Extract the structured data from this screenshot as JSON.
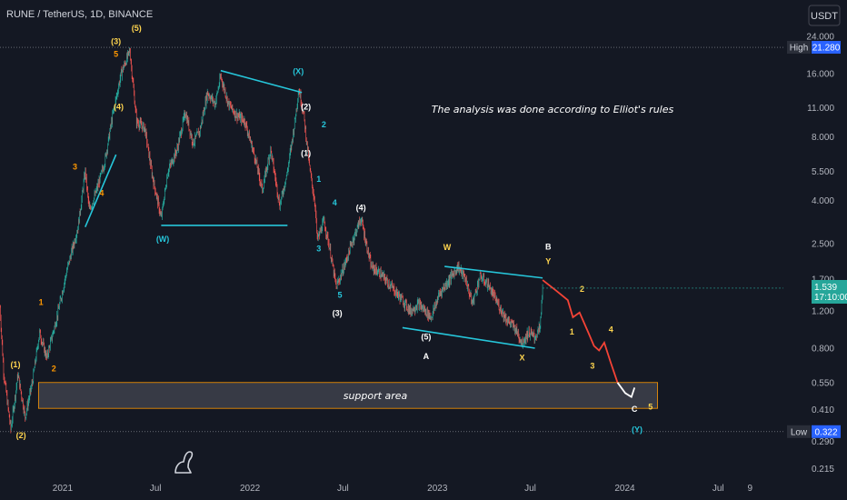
{
  "header": {
    "title": "RUNE / TetherUS, 1D, BINANCE"
  },
  "currency": "USDT",
  "colors": {
    "background": "#141823",
    "up": "#26a69a",
    "down": "#ef5350",
    "cyan": "#26c6da",
    "orange": "#ff9800",
    "yellow": "#ffd54f",
    "red_projection": "#f44336",
    "white": "#ffffff"
  },
  "icons": {
    "logo": "dinosaur-logo-icon"
  },
  "chart_data": {
    "type": "candlestick",
    "title": "RUNE / TetherUS, 1D, BINANCE",
    "y_scale": "log",
    "ylim": [
      0.19,
      27
    ],
    "xlim": [
      "2020-09-01",
      "2024-11-05"
    ],
    "y_ticks": [
      "24.000",
      "16.000",
      "11.000",
      "8.000",
      "5.500",
      "4.000",
      "2.500",
      "1.700",
      "1.200",
      "0.800",
      "0.550",
      "0.410",
      "0.290",
      "0.215"
    ],
    "x_ticks": [
      {
        "label": "2021",
        "date": "2021-01-01"
      },
      {
        "label": "Jul",
        "date": "2021-07-01"
      },
      {
        "label": "2022",
        "date": "2022-01-01"
      },
      {
        "label": "Jul",
        "date": "2022-07-01"
      },
      {
        "label": "2023",
        "date": "2023-01-01"
      },
      {
        "label": "Jul",
        "date": "2023-07-01"
      },
      {
        "label": "2024",
        "date": "2024-01-01"
      },
      {
        "label": "Jul",
        "date": "2024-07-01"
      },
      {
        "label": "9",
        "date": "2024-09-01"
      }
    ],
    "price_path": [
      [
        "2020-09-01",
        1.25
      ],
      [
        "2020-09-08",
        0.62
      ],
      [
        "2020-09-22",
        0.33
      ],
      [
        "2020-10-06",
        0.6
      ],
      [
        "2020-10-20",
        0.38
      ],
      [
        "2020-11-03",
        0.55
      ],
      [
        "2020-11-17",
        0.95
      ],
      [
        "2020-12-01",
        0.72
      ],
      [
        "2020-12-20",
        1.1
      ],
      [
        "2021-01-10",
        1.9
      ],
      [
        "2021-01-31",
        3.0
      ],
      [
        "2021-02-14",
        5.5
      ],
      [
        "2021-02-22",
        3.6
      ],
      [
        "2021-03-06",
        4.3
      ],
      [
        "2021-03-24",
        6.1
      ],
      [
        "2021-04-08",
        10.0
      ],
      [
        "2021-04-25",
        16.0
      ],
      [
        "2021-05-12",
        20.5
      ],
      [
        "2021-05-25",
        9.5
      ],
      [
        "2021-06-10",
        8.8
      ],
      [
        "2021-06-25",
        5.2
      ],
      [
        "2021-07-12",
        3.3
      ],
      [
        "2021-07-25",
        5.5
      ],
      [
        "2021-08-12",
        7.0
      ],
      [
        "2021-08-28",
        10.5
      ],
      [
        "2021-09-12",
        7.5
      ],
      [
        "2021-09-25",
        8.5
      ],
      [
        "2021-10-10",
        13.0
      ],
      [
        "2021-10-25",
        11.5
      ],
      [
        "2021-11-05",
        15.5
      ],
      [
        "2021-11-20",
        11.5
      ],
      [
        "2021-12-05",
        10.2
      ],
      [
        "2021-12-22",
        9.5
      ],
      [
        "2022-01-10",
        6.5
      ],
      [
        "2022-01-25",
        4.5
      ],
      [
        "2022-02-10",
        7.0
      ],
      [
        "2022-02-28",
        3.8
      ],
      [
        "2022-03-15",
        5.5
      ],
      [
        "2022-03-28",
        9.0
      ],
      [
        "2022-04-06",
        13.5
      ],
      [
        "2022-04-15",
        10.5
      ],
      [
        "2022-04-28",
        5.5
      ],
      [
        "2022-05-08",
        3.8
      ],
      [
        "2022-05-12",
        2.6
      ],
      [
        "2022-05-25",
        3.2
      ],
      [
        "2022-06-05",
        2.4
      ],
      [
        "2022-06-18",
        1.55
      ],
      [
        "2022-07-05",
        2.0
      ],
      [
        "2022-07-20",
        2.6
      ],
      [
        "2022-08-05",
        3.3
      ],
      [
        "2022-08-25",
        1.95
      ],
      [
        "2022-09-12",
        1.8
      ],
      [
        "2022-10-05",
        1.55
      ],
      [
        "2022-10-25",
        1.35
      ],
      [
        "2022-11-10",
        1.2
      ],
      [
        "2022-11-25",
        1.3
      ],
      [
        "2022-12-20",
        1.12
      ],
      [
        "2023-01-05",
        1.45
      ],
      [
        "2023-01-25",
        1.7
      ],
      [
        "2023-02-10",
        1.95
      ],
      [
        "2023-02-25",
        1.7
      ],
      [
        "2023-03-10",
        1.3
      ],
      [
        "2023-03-25",
        1.75
      ],
      [
        "2023-04-10",
        1.6
      ],
      [
        "2023-04-25",
        1.35
      ],
      [
        "2023-05-15",
        1.1
      ],
      [
        "2023-06-01",
        1.0
      ],
      [
        "2023-06-15",
        0.85
      ],
      [
        "2023-06-28",
        0.95
      ],
      [
        "2023-07-10",
        0.9
      ],
      [
        "2023-07-20",
        1.0
      ],
      [
        "2023-07-25",
        1.539
      ]
    ],
    "projection": [
      [
        "2023-07-25",
        1.68
      ],
      [
        "2023-08-20",
        1.5
      ],
      [
        "2023-09-12",
        1.35
      ],
      [
        "2023-09-22",
        1.12
      ],
      [
        "2023-10-05",
        1.18
      ],
      [
        "2023-10-22",
        0.95
      ],
      [
        "2023-11-02",
        0.82
      ],
      [
        "2023-11-12",
        0.78
      ],
      [
        "2023-11-22",
        0.85
      ],
      [
        "2023-12-05",
        0.68
      ],
      [
        "2023-12-18",
        0.55
      ]
    ],
    "projection_end": [
      [
        "2023-12-18",
        0.55
      ],
      [
        "2024-01-02",
        0.49
      ],
      [
        "2024-01-14",
        0.47
      ],
      [
        "2024-01-20",
        0.52
      ]
    ],
    "support_area": {
      "label": "support area",
      "from": "2020-11-15",
      "to": "2024-03-05",
      "low": 0.415,
      "high": 0.55
    },
    "trend_lines": [
      [
        [
          "2021-02-14",
          3.0
        ],
        [
          "2021-04-15",
          6.6
        ]
      ],
      [
        [
          "2021-07-12",
          3.05
        ],
        [
          "2022-03-15",
          3.05
        ]
      ],
      [
        [
          "2021-11-05",
          16.5
        ],
        [
          "2022-04-12",
          13.0
        ]
      ],
      [
        [
          "2023-01-15",
          1.95
        ],
        [
          "2023-07-25",
          1.72
        ]
      ],
      [
        [
          "2022-10-25",
          1.0
        ],
        [
          "2023-07-10",
          0.8
        ]
      ]
    ],
    "wave_labels": [
      {
        "text": "(1)",
        "date": "2020-10-01",
        "price": 0.65,
        "color": "#ffd54f"
      },
      {
        "text": "(2)",
        "date": "2020-10-12",
        "price": 0.3,
        "color": "#ffd54f"
      },
      {
        "text": "1",
        "date": "2020-11-20",
        "price": 1.28,
        "color": "#ff9800"
      },
      {
        "text": "2",
        "date": "2020-12-15",
        "price": 0.62,
        "color": "#ff9800"
      },
      {
        "text": "3",
        "date": "2021-01-25",
        "price": 5.6,
        "color": "#ff9800"
      },
      {
        "text": "4",
        "date": "2021-03-18",
        "price": 4.2,
        "color": "#ff9800"
      },
      {
        "text": "(3)",
        "date": "2021-04-15",
        "price": 22.0,
        "color": "#ffd54f"
      },
      {
        "text": "5",
        "date": "2021-04-15",
        "price": 19.2,
        "color": "#ff9800"
      },
      {
        "text": "(4)",
        "date": "2021-04-20",
        "price": 10.8,
        "color": "#ffd54f"
      },
      {
        "text": "(5)",
        "date": "2021-05-25",
        "price": 25.5,
        "color": "#ffd54f"
      },
      {
        "text": "(W)",
        "date": "2021-07-15",
        "price": 2.55,
        "color": "#26c6da"
      },
      {
        "text": "(X)",
        "date": "2022-04-05",
        "price": 15.9,
        "color": "#26c6da"
      },
      {
        "text": "(2)",
        "date": "2022-04-20",
        "price": 10.8,
        "color": "#ffffff"
      },
      {
        "text": "2",
        "date": "2022-05-25",
        "price": 8.9,
        "color": "#26c6da"
      },
      {
        "text": "(1)",
        "date": "2022-04-20",
        "price": 6.5,
        "color": "#ffffff"
      },
      {
        "text": "1",
        "date": "2022-05-15",
        "price": 4.9,
        "color": "#26c6da"
      },
      {
        "text": "4",
        "date": "2022-06-15",
        "price": 3.8,
        "color": "#26c6da"
      },
      {
        "text": "(4)",
        "date": "2022-08-05",
        "price": 3.6,
        "color": "#ffffff"
      },
      {
        "text": "3",
        "date": "2022-05-15",
        "price": 2.3,
        "color": "#26c6da"
      },
      {
        "text": "5",
        "date": "2022-06-25",
        "price": 1.39,
        "color": "#26c6da"
      },
      {
        "text": "(3)",
        "date": "2022-06-20",
        "price": 1.14,
        "color": "#ffffff"
      },
      {
        "text": "W",
        "date": "2023-01-20",
        "price": 2.33,
        "color": "#ffd54f"
      },
      {
        "text": "(5)",
        "date": "2022-12-10",
        "price": 0.88,
        "color": "#ffffff"
      },
      {
        "text": "A",
        "date": "2022-12-10",
        "price": 0.71,
        "color": "#ffffff"
      },
      {
        "text": "X",
        "date": "2023-06-15",
        "price": 0.7,
        "color": "#ffd54f"
      },
      {
        "text": "B",
        "date": "2023-08-05",
        "price": 2.35,
        "color": "#ffffff"
      },
      {
        "text": "Y",
        "date": "2023-08-05",
        "price": 2.0,
        "color": "#ffd54f"
      },
      {
        "text": "2",
        "date": "2023-10-10",
        "price": 1.48,
        "color": "#ffd54f"
      },
      {
        "text": "1",
        "date": "2023-09-20",
        "price": 0.93,
        "color": "#ffd54f"
      },
      {
        "text": "4",
        "date": "2023-12-05",
        "price": 0.95,
        "color": "#ffd54f"
      },
      {
        "text": "3",
        "date": "2023-10-30",
        "price": 0.64,
        "color": "#ffd54f"
      },
      {
        "text": "C",
        "date": "2024-01-20",
        "price": 0.4,
        "color": "#ffffff"
      },
      {
        "text": "5",
        "date": "2024-02-20",
        "price": 0.41,
        "color": "#ffd54f"
      },
      {
        "text": "(Y)",
        "date": "2024-01-25",
        "price": 0.32,
        "color": "#26c6da"
      }
    ],
    "annotation": "The analysis was done according to Elliot's rules",
    "markers": {
      "high": {
        "label": "High",
        "value": "21.280",
        "price": 21.28
      },
      "last": {
        "value": "1.539",
        "countdown": "17:10:00",
        "price": 1.539
      },
      "low": {
        "label": "Low",
        "value": "0.322",
        "price": 0.322
      }
    }
  }
}
